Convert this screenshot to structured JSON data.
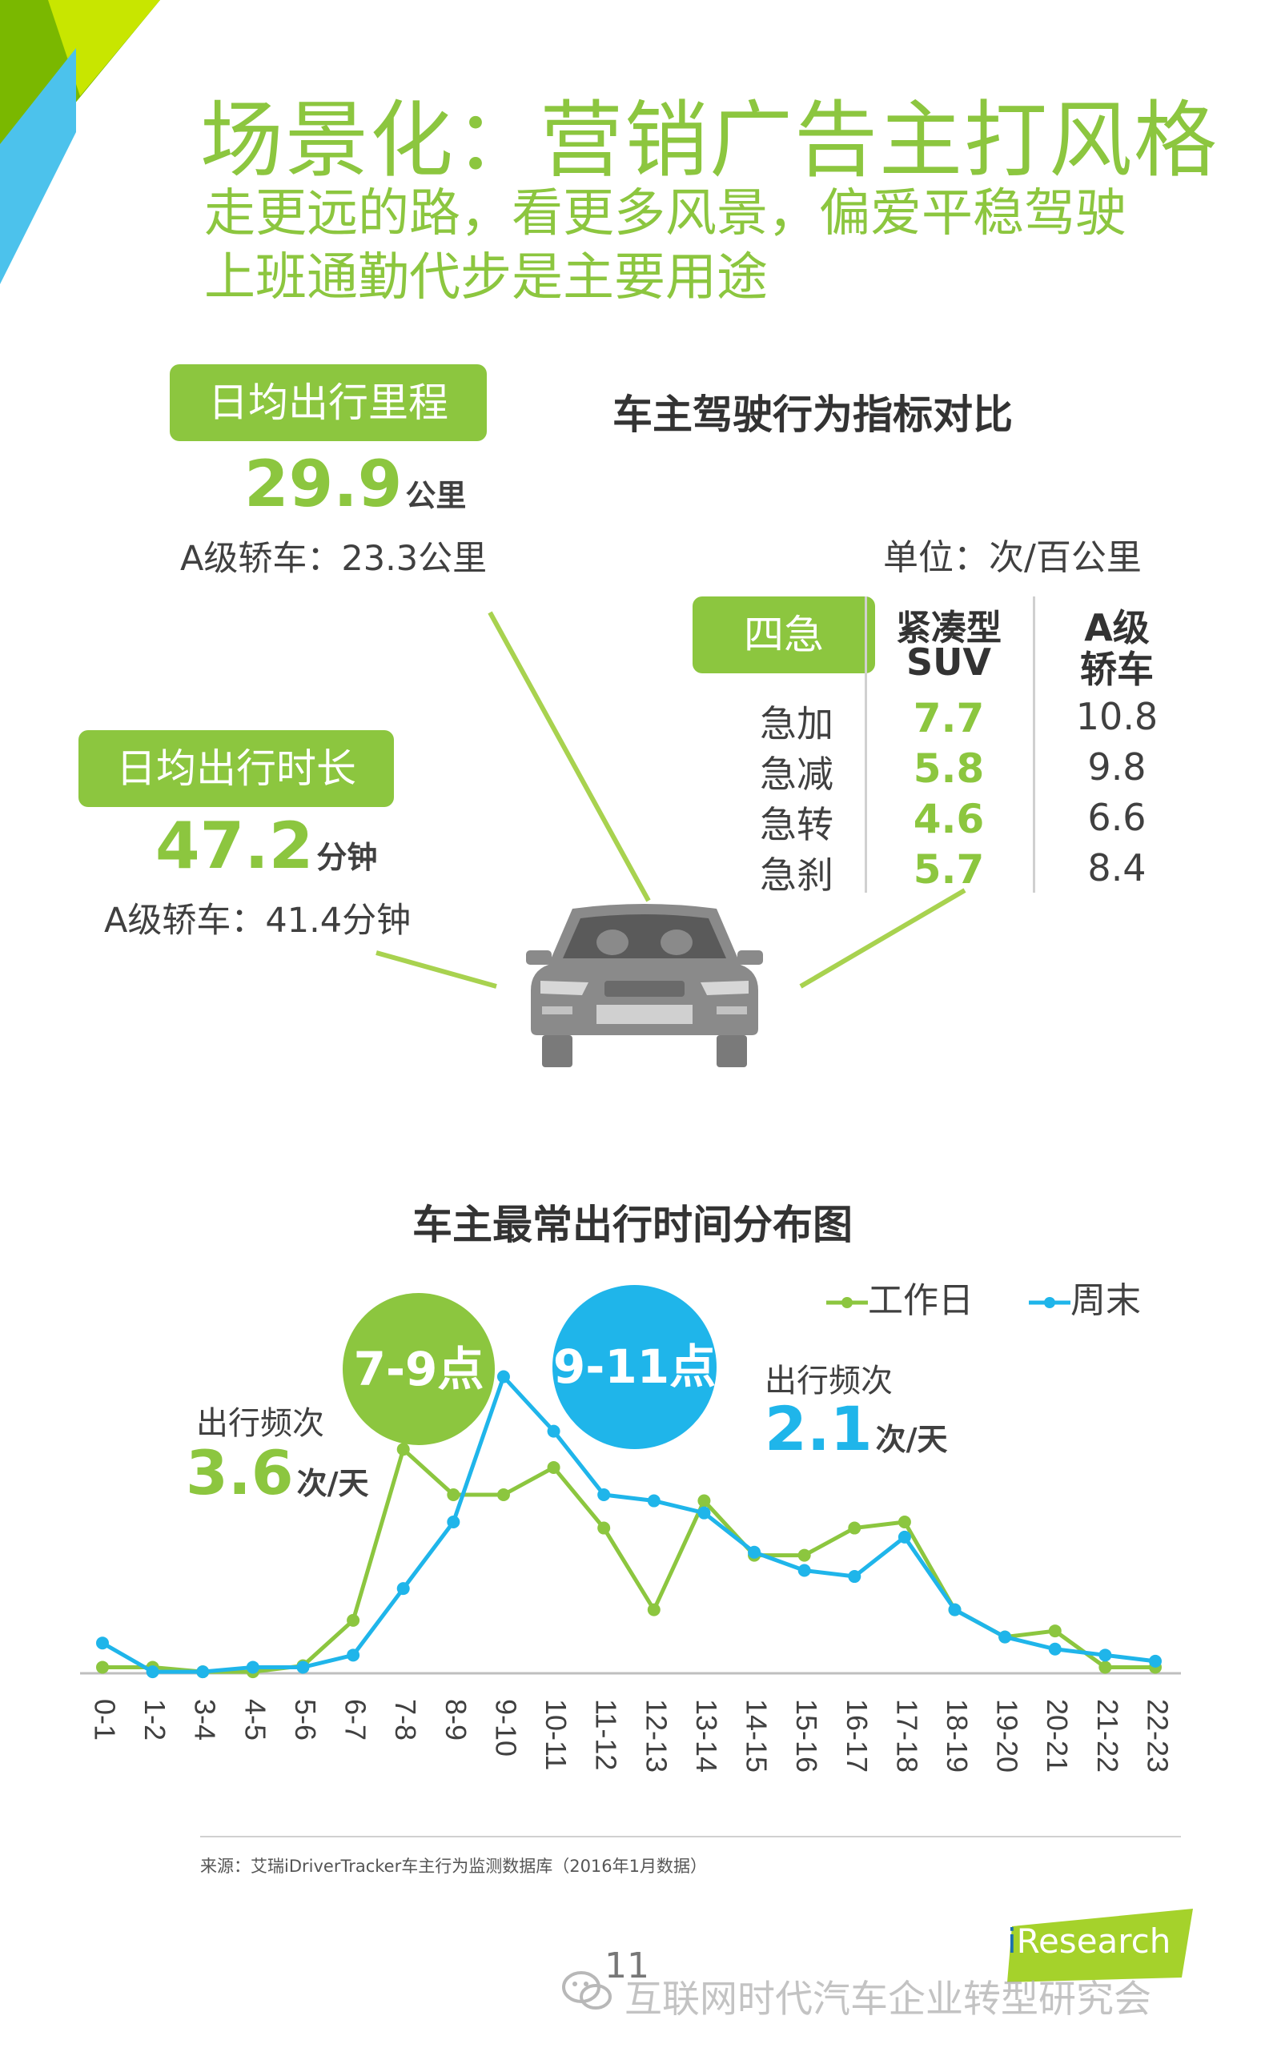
{
  "header": {
    "title": "场景化：营销广告主打风格",
    "subtitle_line1": "走更远的路，看更多风景，偏爱平稳驾驶",
    "subtitle_line2": "上班通勤代步是主要用途"
  },
  "mileage": {
    "label": "日均出行里程",
    "value": "29.9",
    "unit": "公里",
    "compare": "A级轿车：23.3公里"
  },
  "duration": {
    "label": "日均出行时长",
    "value": "47.2",
    "unit": "分钟",
    "compare": "A级轿车：41.4分钟"
  },
  "behavior": {
    "title": "车主驾驶行为指标对比",
    "unit": "单位：次/百公里",
    "pill": "四急",
    "col1_line1": "紧凑型",
    "col1_line2": "SUV",
    "col2_line1": "A级",
    "col2_line2": "轿车",
    "rows": [
      {
        "label": "急加",
        "suv": "7.7",
        "sedan": "10.8"
      },
      {
        "label": "急减",
        "suv": "5.8",
        "sedan": "9.8"
      },
      {
        "label": "急转",
        "suv": "4.6",
        "sedan": "6.6"
      },
      {
        "label": "急刹",
        "suv": "5.7",
        "sedan": "8.4"
      }
    ]
  },
  "chart_data": {
    "type": "line",
    "title": "车主最常出行时间分布图",
    "categories": [
      "0-1",
      "1-2",
      "3-4",
      "4-5",
      "5-6",
      "6-7",
      "7-8",
      "8-9",
      "9-10",
      "10-11",
      "11-12",
      "12-13",
      "13-14",
      "14-15",
      "15-16",
      "16-17",
      "17-18",
      "18-19",
      "19-20",
      "20-21",
      "21-22",
      "22-23"
    ],
    "series": [
      {
        "name": "工作日",
        "color": "#8cc63f",
        "values": [
          2,
          2,
          0.5,
          0.5,
          2.5,
          17.5,
          74,
          59,
          59,
          68,
          48,
          21,
          57,
          39,
          39,
          48,
          50,
          21,
          12,
          14,
          2,
          2
        ]
      },
      {
        "name": "周末",
        "color": "#1fb5ea",
        "values": [
          10,
          0.5,
          0.5,
          2,
          2,
          6,
          28,
          50,
          98,
          80,
          59,
          57,
          53,
          40,
          34,
          32,
          45,
          21,
          12,
          8,
          6,
          4
        ]
      }
    ],
    "ylim": [
      0,
      100
    ],
    "grid": false,
    "legend_position": "top-right",
    "annotations": {
      "workday_bubble": "7-9点",
      "weekend_bubble": "9-11点",
      "workday_freq_label": "出行频次",
      "workday_freq_value": "3.6",
      "workday_freq_unit": "次/天",
      "weekend_freq_label": "出行频次",
      "weekend_freq_value": "2.1",
      "weekend_freq_unit": "次/天"
    }
  },
  "footer": {
    "source": "来源：艾瑞iDriverTracker车主行为监测数据库（2016年1月数据）",
    "page_number": "11",
    "logo_i": "i",
    "logo_text": "Research",
    "watermark": "互联网时代汽车企业转型研究会"
  },
  "colors": {
    "accent_green": "#8cc63f",
    "accent_blue": "#1fb5ea",
    "corner_dark_green": "#7ab800",
    "corner_light_green": "#c8e600",
    "corner_blue": "#4cc2ec"
  },
  "icons": {
    "car": "car-front-icon",
    "wechat": "wechat-icon"
  }
}
